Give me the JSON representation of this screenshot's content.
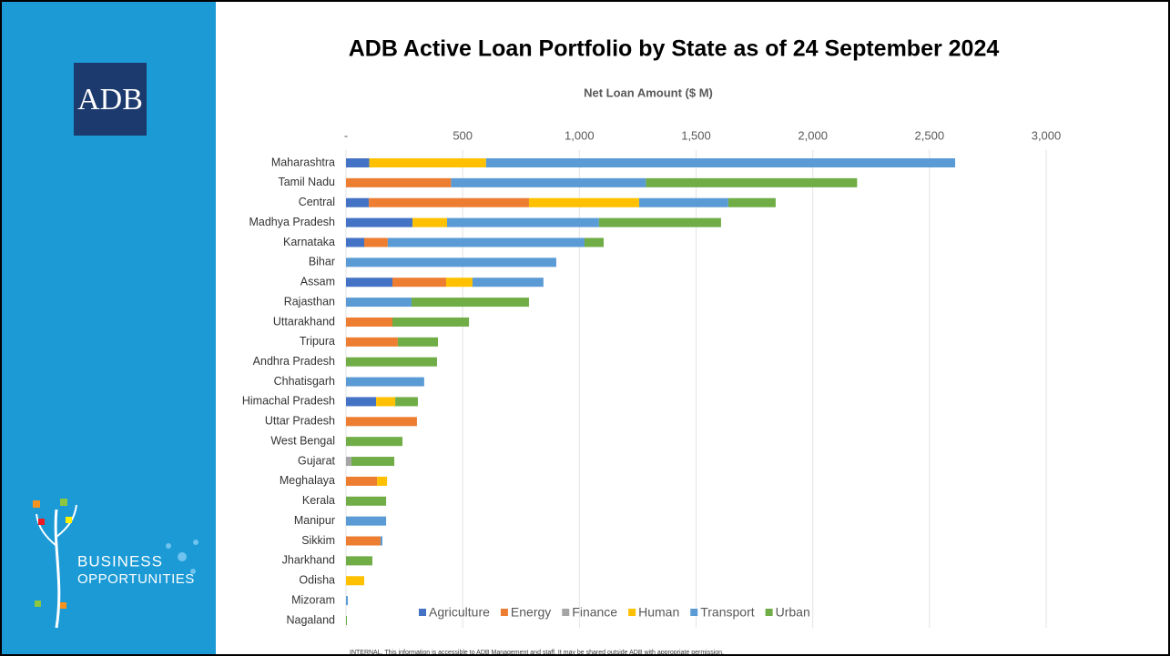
{
  "sidebar": {
    "logo": "ADB",
    "tagline": [
      "BUSINESS",
      "OPPORTUNITIES"
    ]
  },
  "footer": "INTERNAL. This information is accessible to ADB Management and staff. It may be shared outside ADB with appropriate permission.",
  "chart_data": {
    "type": "stacked-bar-horizontal",
    "title": "ADB Active Loan Portfolio by State as of 24 September 2024",
    "x_label": "Net Loan Amount ($ M)",
    "categories": [
      "Maharashtra",
      "Tamil Nadu",
      "Central",
      "Madhya Pradesh",
      "Karnataka",
      "Bihar",
      "Assam",
      "Rajasthan",
      "Uttarakhand",
      "Tripura",
      "Andhra Pradesh",
      "Chhatisgarh",
      "Himachal Pradesh",
      "Uttar Pradesh",
      "West Bengal",
      "Gujarat",
      "Meghalaya",
      "Kerala",
      "Manipur",
      "Sikkim",
      "Jharkhand",
      "Odisha",
      "Mizoram",
      "Nagaland"
    ],
    "series": [
      {
        "name": "Agriculture",
        "color": "#4472c4",
        "values": [
          100,
          null,
          98,
          285,
          78,
          null,
          199,
          null,
          null,
          null,
          null,
          null,
          129,
          null,
          null,
          null,
          null,
          null,
          null,
          null,
          null,
          null,
          null,
          null
        ]
      },
      {
        "name": "Energy",
        "color": "#ed7d31",
        "values": [
          null,
          450,
          686,
          null,
          101,
          null,
          230,
          null,
          199,
          222,
          null,
          null,
          null,
          304,
          null,
          null,
          133,
          null,
          null,
          148,
          null,
          null,
          null,
          null
        ]
      },
      {
        "name": "Finance",
        "color": "#a5a5a5",
        "values": [
          null,
          null,
          null,
          null,
          null,
          null,
          null,
          null,
          null,
          null,
          null,
          null,
          null,
          null,
          null,
          23,
          null,
          null,
          null,
          null,
          null,
          null,
          null,
          null
        ]
      },
      {
        "name": "Human",
        "color": "#ffc000",
        "values": [
          500,
          null,
          472,
          148,
          null,
          null,
          113,
          null,
          null,
          null,
          null,
          null,
          82,
          null,
          null,
          null,
          43,
          null,
          null,
          null,
          null,
          78,
          null,
          null
        ]
      },
      {
        "name": "Transport",
        "color": "#5b9bd5",
        "values": [
          2010,
          835,
          382,
          651,
          843,
          901,
          304,
          281,
          null,
          null,
          null,
          335,
          null,
          null,
          null,
          null,
          null,
          null,
          172,
          8,
          null,
          null,
          8,
          null
        ]
      },
      {
        "name": "Urban",
        "color": "#70ad47",
        "values": [
          null,
          905,
          203,
          523,
          82,
          null,
          null,
          503,
          328,
          172,
          390,
          null,
          97,
          null,
          242,
          184,
          null,
          172,
          null,
          null,
          113,
          null,
          null,
          4
        ]
      }
    ],
    "xlim": [
      0,
      3000
    ],
    "xticks": [
      {
        "value": 0,
        "label": "-"
      },
      500,
      {
        "value": 1000,
        "label": "1,000"
      },
      {
        "value": 1500,
        "label": "1,500"
      },
      {
        "value": 2000,
        "label": "2,000"
      },
      {
        "value": 2500,
        "label": "2,500"
      },
      {
        "value": 3000,
        "label": "3,000"
      }
    ],
    "grid": true,
    "legend": "bottom"
  }
}
